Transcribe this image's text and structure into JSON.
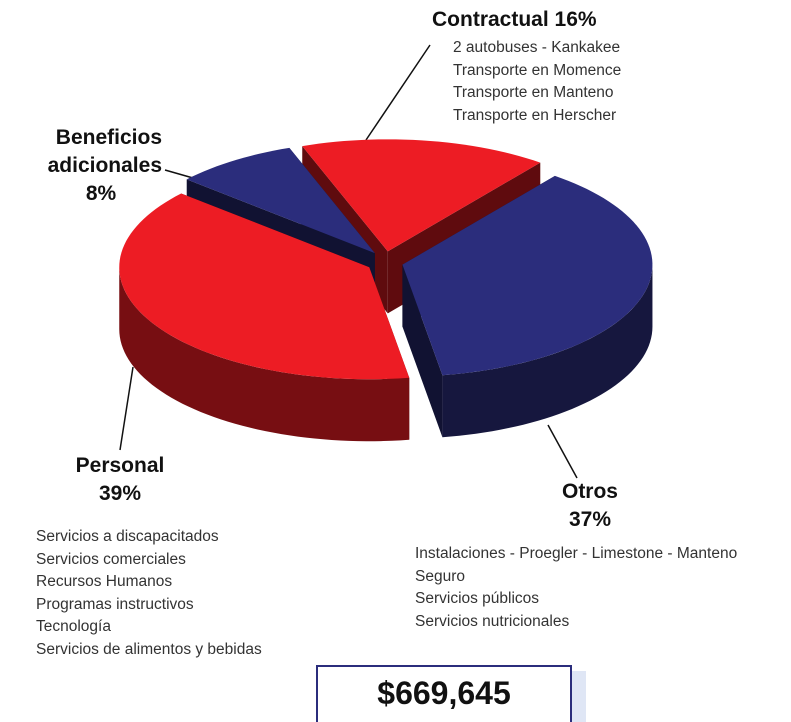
{
  "chart_data": {
    "type": "pie",
    "categories": [
      "Contractual",
      "Otros",
      "Personal",
      "Beneficios adicionales"
    ],
    "values": [
      16,
      37,
      39,
      8
    ],
    "value_labels": [
      "16%",
      "37%",
      "39%",
      "8%"
    ],
    "colors": [
      "#ed1c24",
      "#2b2d7c",
      "#ed1c24",
      "#2b2d7c"
    ],
    "details": [
      [
        "2 autobuses - Kankakee",
        "Transporte en Momence",
        "Transporte en Manteno",
        "Transporte en Herscher"
      ],
      [
        "Instalaciones - Proegler - Limestone - Manteno",
        "Seguro",
        "Servicios públicos",
        "Servicios nutricionales"
      ],
      [
        "Servicios a discapacitados",
        "Servicios comerciales",
        "Recursos Humanos",
        "Programas instructivos",
        "Tecnología",
        "Servicios de alimentos y bebidas"
      ],
      []
    ],
    "total": "$669,645"
  }
}
